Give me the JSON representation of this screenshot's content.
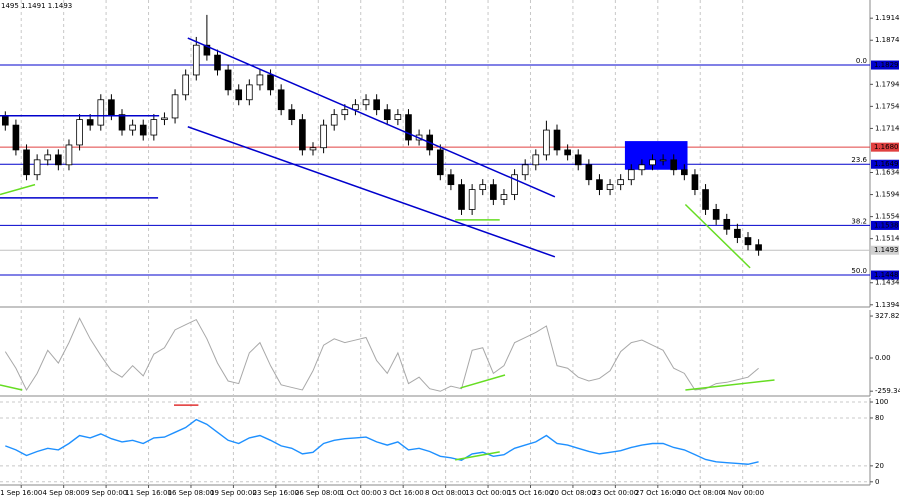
{
  "header": "1495 1.1491 1.1493",
  "chart_data": [
    {
      "type": "candlestick",
      "xlim": [
        0,
        82
      ],
      "ylim": [
        1.139,
        1.1947
      ],
      "yticks": [
        1.1914,
        1.1874,
        1.1794,
        1.1754,
        1.1714,
        1.1634,
        1.1594,
        1.1554,
        1.1514,
        1.1434,
        1.1394
      ],
      "xticks": [
        {
          "value": 2,
          "label": "1 Sep 16:00"
        },
        {
          "value": 6,
          "label": "4 Sep 08:00"
        },
        {
          "value": 10,
          "label": "9 Sep 00:00"
        },
        {
          "value": 14,
          "label": "11 Sep 16:00"
        },
        {
          "value": 18,
          "label": "16 Sep 08:00"
        },
        {
          "value": 22,
          "label": "19 Sep 00:00"
        },
        {
          "value": 26,
          "label": "23 Sep 16:00"
        },
        {
          "value": 30,
          "label": "26 Sep 08:00"
        },
        {
          "value": 34,
          "label": "1 Oct 00:00"
        },
        {
          "value": 38,
          "label": "3 Oct 16:00"
        },
        {
          "value": 42,
          "label": "8 Oct 08:00"
        },
        {
          "value": 46,
          "label": "13 Oct 00:00"
        },
        {
          "value": 50,
          "label": "15 Oct 16:00"
        },
        {
          "value": 54,
          "label": "20 Oct 08:00"
        },
        {
          "value": 58,
          "label": "23 Oct 00:00"
        },
        {
          "value": 62,
          "label": "27 Oct 16:00"
        },
        {
          "value": 66,
          "label": "30 Oct 08:00"
        },
        {
          "value": 70,
          "label": "4 Nov 00:00"
        }
      ],
      "open": [
        1.1735,
        1.172,
        1.1675,
        1.163,
        1.1657,
        1.1666,
        1.1648,
        1.1684,
        1.173,
        1.172,
        1.1766,
        1.1739,
        1.1711,
        1.172,
        1.1702,
        1.173,
        1.1733,
        1.1775,
        1.1811,
        1.1865,
        1.1847,
        1.182,
        1.1784,
        1.1766,
        1.1793,
        1.1811,
        1.1784,
        1.1748,
        1.173,
        1.1675,
        1.1679,
        1.172,
        1.1739,
        1.1748,
        1.1757,
        1.1766,
        1.1748,
        1.173,
        1.1739,
        1.1693,
        1.1702,
        1.1675,
        1.163,
        1.1612,
        1.1567,
        1.1603,
        1.1612,
        1.1585,
        1.1594,
        1.163,
        1.1648,
        1.1666,
        1.1711,
        1.1675,
        1.1666,
        1.1648,
        1.1621,
        1.1603,
        1.1612,
        1.1621,
        1.1639,
        1.1648,
        1.1657,
        1.1657,
        1.1639,
        1.163,
        1.1603,
        1.1567,
        1.1549,
        1.1531,
        1.1516,
        1.1503
      ],
      "high": [
        1.1745,
        1.173,
        1.1685,
        1.1667,
        1.1676,
        1.1676,
        1.1694,
        1.174,
        1.174,
        1.1776,
        1.1776,
        1.1749,
        1.173,
        1.173,
        1.174,
        1.1743,
        1.1785,
        1.1821,
        1.188,
        1.192,
        1.1857,
        1.183,
        1.1794,
        1.1803,
        1.1821,
        1.1821,
        1.1794,
        1.1758,
        1.174,
        1.1689,
        1.173,
        1.1749,
        1.1758,
        1.1767,
        1.1776,
        1.1776,
        1.1758,
        1.1749,
        1.1749,
        1.1712,
        1.1712,
        1.1685,
        1.164,
        1.1622,
        1.1613,
        1.1622,
        1.1622,
        1.1604,
        1.164,
        1.1658,
        1.1676,
        1.1728,
        1.1721,
        1.1685,
        1.1676,
        1.1658,
        1.1631,
        1.1622,
        1.1631,
        1.1649,
        1.1658,
        1.1667,
        1.1667,
        1.1667,
        1.1649,
        1.164,
        1.1613,
        1.1577,
        1.1559,
        1.1541,
        1.1526,
        1.1513
      ],
      "low": [
        1.171,
        1.1665,
        1.162,
        1.162,
        1.1647,
        1.1638,
        1.1638,
        1.1674,
        1.171,
        1.171,
        1.1729,
        1.1701,
        1.1701,
        1.1692,
        1.1692,
        1.172,
        1.1723,
        1.1765,
        1.1801,
        1.1837,
        1.181,
        1.1774,
        1.1756,
        1.1756,
        1.1783,
        1.1774,
        1.1738,
        1.172,
        1.1665,
        1.1665,
        1.1669,
        1.171,
        1.1729,
        1.1738,
        1.1747,
        1.1738,
        1.172,
        1.172,
        1.1683,
        1.1683,
        1.1665,
        1.162,
        1.1602,
        1.1557,
        1.1557,
        1.1593,
        1.1575,
        1.1575,
        1.1584,
        1.162,
        1.1638,
        1.1656,
        1.1665,
        1.1656,
        1.1638,
        1.1611,
        1.1593,
        1.1593,
        1.1602,
        1.1611,
        1.1629,
        1.1638,
        1.1647,
        1.1629,
        1.162,
        1.1593,
        1.1557,
        1.1539,
        1.1521,
        1.1506,
        1.1493,
        1.1483
      ],
      "close": [
        1.172,
        1.1675,
        1.163,
        1.1657,
        1.1666,
        1.1648,
        1.1684,
        1.173,
        1.172,
        1.1766,
        1.1739,
        1.1711,
        1.172,
        1.1702,
        1.173,
        1.1733,
        1.1775,
        1.1811,
        1.1865,
        1.1847,
        1.182,
        1.1784,
        1.1766,
        1.1793,
        1.1811,
        1.1784,
        1.1748,
        1.173,
        1.1675,
        1.1679,
        1.172,
        1.1739,
        1.1748,
        1.1757,
        1.1766,
        1.1748,
        1.173,
        1.1739,
        1.1693,
        1.1702,
        1.1675,
        1.163,
        1.1612,
        1.1567,
        1.1603,
        1.1612,
        1.1585,
        1.1594,
        1.163,
        1.1648,
        1.1666,
        1.1711,
        1.1675,
        1.1666,
        1.1648,
        1.1621,
        1.1603,
        1.1612,
        1.1621,
        1.1639,
        1.1648,
        1.1657,
        1.1657,
        1.1639,
        1.163,
        1.1603,
        1.1567,
        1.1549,
        1.1531,
        1.1516,
        1.1503,
        1.1493
      ],
      "up_color": "#ffffff",
      "down_color": "#000000",
      "wick_color": "#000000",
      "levels": [
        {
          "value": 1.1829,
          "fib": "0.0",
          "color": "#0000cc"
        },
        {
          "value": {
            "value": 1.168,
            "label": "1.1680"
          },
          "color": "#e04040"
        },
        {
          "value": 1.1649,
          "fib": "23.6",
          "color": "#0000cc"
        },
        {
          "value": 1.1538,
          "fib": "38.2",
          "color": "#0000cc"
        },
        {
          "value": 1.1448,
          "fib": "50.0",
          "color": "#0000cc"
        }
      ],
      "last_price": 1.1493,
      "trendlines": [
        {
          "x": [
            0,
            15
          ],
          "y": [
            1.1737,
            1.1737
          ],
          "color": "#0000cc"
        },
        {
          "x": [
            0,
            14.9
          ],
          "y": [
            1.1588,
            1.1588
          ],
          "color": "#0000cc"
        },
        {
          "x": [
            17.7,
            52.3
          ],
          "y": [
            1.1878,
            1.159
          ],
          "color": "#0000cc"
        },
        {
          "x": [
            17.7,
            52.3
          ],
          "y": [
            1.1717,
            1.1481
          ],
          "color": "#0000cc"
        },
        {
          "x": [
            0,
            3.3
          ],
          "y": [
            1.1594,
            1.1612
          ],
          "color": "#66dd22"
        },
        {
          "x": [
            42.9,
            47.1
          ],
          "y": [
            1.1548,
            1.1548
          ],
          "color": "#66dd22"
        },
        {
          "x": [
            64.6,
            70.7
          ],
          "y": [
            1.1576,
            1.1461
          ],
          "color": "#66dd22"
        }
      ],
      "zones": [
        {
          "x": [
            58.9,
            64.8
          ],
          "y": [
            1.1639,
            1.1691
          ],
          "color": "#0000ff"
        }
      ]
    },
    {
      "type": "line",
      "xlim": [
        0,
        82
      ],
      "ylim": [
        -297,
        375
      ],
      "color": "#a8a8a8",
      "yticks": [
        327.826,
        {
          "value": 0,
          "label": "0.00"
        },
        -259.342
      ],
      "values": [
        50,
        -80,
        -250,
        -120,
        60,
        -40,
        120,
        310,
        150,
        20,
        -100,
        -150,
        -60,
        -140,
        30,
        80,
        220,
        260,
        300,
        150,
        -40,
        -180,
        -200,
        40,
        120,
        -60,
        -210,
        -230,
        -250,
        -100,
        100,
        150,
        120,
        140,
        160,
        -20,
        -120,
        40,
        -200,
        -150,
        -240,
        -260,
        -220,
        -240,
        60,
        80,
        -120,
        -60,
        120,
        160,
        200,
        250,
        -60,
        -80,
        -150,
        -180,
        -160,
        -100,
        50,
        120,
        140,
        100,
        60,
        -80,
        -120,
        -250,
        -240,
        -200,
        -190,
        -170,
        -150,
        -80
      ],
      "trendlines": [
        {
          "x": [
            0,
            2.1
          ],
          "y": [
            -211,
            -250
          ],
          "color": "#66dd22"
        },
        {
          "x": [
            43.4,
            47.6
          ],
          "y": [
            -234,
            -133
          ],
          "color": "#66dd22"
        },
        {
          "x": [
            64.6,
            73
          ],
          "y": [
            -250,
            -172
          ],
          "color": "#66dd22"
        }
      ]
    },
    {
      "type": "line",
      "xlim": [
        0,
        82
      ],
      "ylim": [
        -4,
        105
      ],
      "color": "#1e90ff",
      "yticks": [
        100,
        80,
        20,
        0
      ],
      "values": [
        45,
        40,
        33,
        38,
        42,
        40,
        48,
        58,
        55,
        60,
        54,
        50,
        52,
        48,
        55,
        56,
        62,
        68,
        78,
        72,
        62,
        52,
        48,
        55,
        58,
        52,
        45,
        42,
        35,
        37,
        48,
        52,
        54,
        55,
        56,
        50,
        46,
        50,
        40,
        42,
        38,
        32,
        30,
        27,
        35,
        37,
        32,
        34,
        42,
        46,
        50,
        58,
        48,
        46,
        42,
        38,
        35,
        37,
        39,
        43,
        46,
        48,
        48,
        43,
        40,
        34,
        28,
        25,
        24,
        23,
        22,
        25
      ],
      "trendlines": [
        {
          "x": [
            16.4,
            18.7
          ],
          "y": [
            96,
            96
          ],
          "color": "#e03030"
        },
        {
          "x": [
            42.9,
            47.1
          ],
          "y": [
            27.5,
            37.5
          ],
          "color": "#66dd22"
        }
      ]
    }
  ]
}
